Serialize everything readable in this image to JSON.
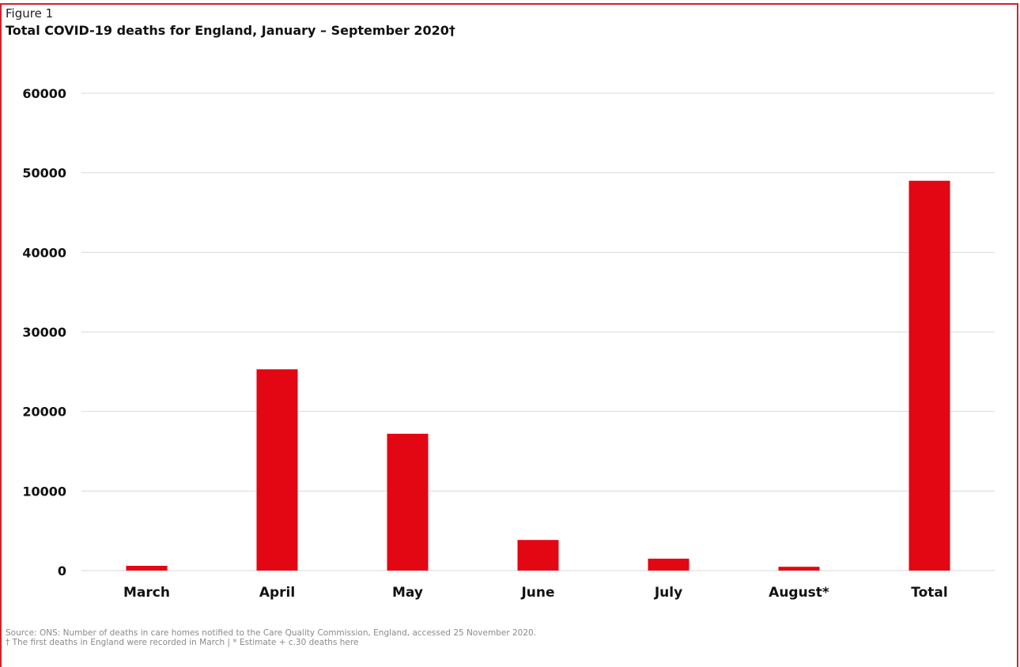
{
  "figure": {
    "label": "Figure 1",
    "title": "Total COVID-19 deaths for England, January – September 2020†"
  },
  "chart_data": {
    "type": "bar",
    "categories": [
      "March",
      "April",
      "May",
      "June",
      "July",
      "August*",
      "Total"
    ],
    "values": [
      600,
      25300,
      17200,
      3850,
      1500,
      480,
      49000
    ],
    "y_ticks": [
      "0",
      "10000",
      "20000",
      "30000",
      "40000",
      "50000",
      "60000"
    ],
    "ylim": [
      0,
      60000
    ],
    "grid": true,
    "legend": "none",
    "bar_color": "#e30613",
    "grid_color": "#d9d9d9"
  },
  "footnotes": {
    "source": "Source: ONS: Number of deaths in care homes notified to the Care Quality Commission, England, accessed 25 November 2020.",
    "note": "† The first deaths in England were recorded in March | * Estimate + c.30 deaths here"
  }
}
